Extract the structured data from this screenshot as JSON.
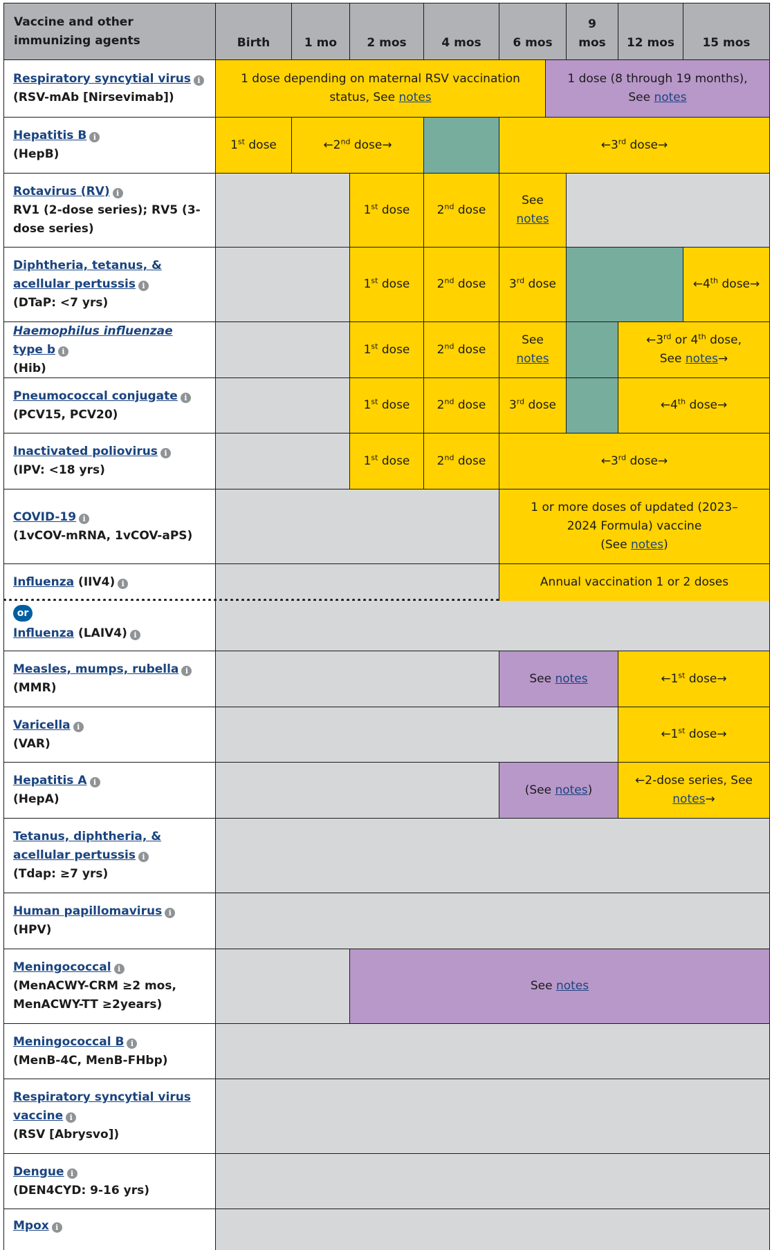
{
  "header": {
    "first": "Vaccine and other immunizing agents",
    "months": [
      "Birth",
      "1 mo",
      "2 mos",
      "4 mos",
      "6 mos",
      "9 mos",
      "12 mos",
      "15 mos"
    ]
  },
  "info_icon": "info-icon",
  "colors": {
    "recommended": "#ffd200",
    "catch_up": "#77ad9d",
    "certain_groups": "#b897c9",
    "not_recommended": "#d6d7d9",
    "header": "#b0b2b6",
    "link": "#1a4480"
  },
  "rows": {
    "rsv_mab": {
      "name": "Respiratory syncytial virus",
      "sub": "(RSV-mAb [Nirsevimab])",
      "cell1_a": "1 dose depending on maternal RSV vaccination status, See",
      "cell1_link": "notes",
      "cell2_a": "1 dose (8 through 19 months), See",
      "cell2_link": "notes"
    },
    "hepb": {
      "name": "Hepatitis B",
      "sub": "(HepB)",
      "d1": "1",
      "d1s": "st",
      "d1b": " dose",
      "d2a": "←2",
      "d2s": "nd",
      "d2b": " dose→",
      "d3a": "←3",
      "d3s": "rd",
      "d3b": " dose→"
    },
    "rv": {
      "name": "Rotavirus (RV)",
      "sub": "RV1 (2-dose series); RV5 (3-dose series)",
      "see": "See",
      "notes": "notes"
    },
    "dtap": {
      "name": "Diphtheria, tetanus, & acellular pertussis",
      "sub": "(DTaP: <7 yrs)",
      "d4a": "←4",
      "d4s": "th",
      "d4b": " dose→"
    },
    "hib": {
      "name_italic": "Haemophilus influenzae",
      "name_rest": " type b",
      "sub": "(Hib)",
      "see": "See",
      "notes": "notes",
      "range_a": "←3",
      "range_s1": "rd",
      "range_b": " or 4",
      "range_s2": "th",
      "range_c": " dose,",
      "range_d": "See ",
      "range_link": "notes",
      "range_e": "→"
    },
    "pcv": {
      "name": "Pneumococcal conjugate",
      "sub": "(PCV15, PCV20)",
      "d4a": "←4",
      "d4s": "th",
      "d4b": " dose→"
    },
    "ipv": {
      "name": "Inactivated poliovirus",
      "sub": "(IPV: <18 yrs)",
      "d3a": "←3",
      "d3s": "rd",
      "d3b": " dose→"
    },
    "covid": {
      "name": "COVID-19",
      "sub": "(1vCOV-mRNA, 1vCOV-aPS)",
      "text": "1 or more doses of updated (2023–2024 Formula) vaccine",
      "see_a": "(See ",
      "see_link": "notes",
      "see_b": ")"
    },
    "flu_iiv": {
      "name": "Influenza",
      "rest": " (IIV4)",
      "text": "Annual vaccination 1 or 2 doses"
    },
    "or_badge": "or",
    "flu_laiv": {
      "name": "Influenza",
      "rest": " (LAIV4)"
    },
    "mmr": {
      "name": "Measles, mumps, rubella",
      "sub": "(MMR)",
      "see": "See ",
      "notes": "notes",
      "d1a": "←1",
      "d1s": "st",
      "d1b": " dose→"
    },
    "var": {
      "name": "Varicella",
      "sub": "(VAR)",
      "d1a": "←1",
      "d1s": "st",
      "d1b": " dose→"
    },
    "hepa": {
      "name": "Hepatitis A",
      "sub": "(HepA)",
      "see_a": "(See ",
      "see_link": "notes",
      "see_b": ")",
      "series_a": "←2-dose series, See",
      "series_link": "notes",
      "series_b": "→"
    },
    "tdap": {
      "name": "Tetanus, diphtheria, & acellular pertussis",
      "sub": "(Tdap: ≥7 yrs)"
    },
    "hpv": {
      "name": "Human papillomavirus",
      "sub": "(HPV)"
    },
    "men": {
      "name": "Meningococcal",
      "sub": "(MenACWY-CRM ≥2 mos, MenACWY-TT ≥2years)",
      "see": "See ",
      "notes": "notes"
    },
    "menb": {
      "name": "Meningococcal B",
      "sub": "(MenB-4C, MenB-FHbp)"
    },
    "rsv_vac": {
      "name": "Respiratory syncytial virus vaccine",
      "sub": "(RSV [Abrysvo])"
    },
    "dengue": {
      "name": "Dengue",
      "sub": "(DEN4CYD: 9-16 yrs)"
    },
    "mpox": {
      "name": "Mpox"
    }
  },
  "dose_labels": {
    "d1a": "1",
    "d1s": "st",
    "d2a": "2",
    "d2s": "nd",
    "d3a": "3",
    "d3s": "rd",
    "dose": " dose"
  }
}
